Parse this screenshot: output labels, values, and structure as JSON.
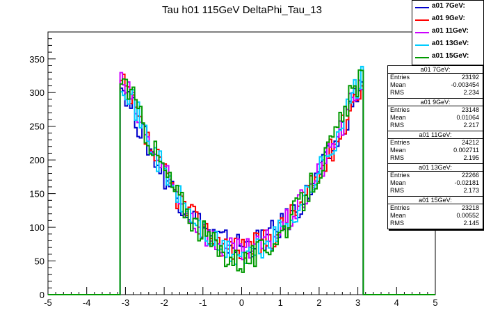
{
  "chart_data": {
    "type": "line",
    "title": "Tau h01 115GeV DeltaPhi_Tau_13",
    "xlabel": "",
    "ylabel": "",
    "xlim": [
      -5,
      5
    ],
    "ylim": [
      0,
      390
    ],
    "x_ticks": [
      "-5",
      "-4",
      "-3",
      "-2",
      "-1",
      "0",
      "1",
      "2",
      "3",
      "4",
      "5"
    ],
    "y_ticks": [
      "0",
      "50",
      "100",
      "150",
      "200",
      "250",
      "300",
      "350"
    ],
    "grid": false,
    "legend_position": "top-right",
    "series": [
      {
        "name": "a01 7GeV:",
        "color": "#0000cc",
        "entries": "23192",
        "mean": "-0.003454",
        "rms": "2.234",
        "seed": 1
      },
      {
        "name": "a01 9GeV:",
        "color": "#ff0000",
        "entries": "23148",
        "mean": "0.01064",
        "rms": "2.217",
        "seed": 2
      },
      {
        "name": "a01 11GeV:",
        "color": "#cc00ff",
        "entries": "24212",
        "mean": "0.002711",
        "rms": "2.195",
        "seed": 3
      },
      {
        "name": "a01 13GeV:",
        "color": "#00ccff",
        "entries": "22266",
        "mean": "-0.02181",
        "rms": "2.173",
        "seed": 4
      },
      {
        "name": "a01 15GeV:",
        "color": "#009900",
        "entries": "23218",
        "mean": "0.00552",
        "rms": "2.145",
        "seed": 5
      }
    ],
    "shape": {
      "range": [
        -3.14,
        3.14
      ],
      "bins": 100,
      "edge_value": 305,
      "center_value": 62,
      "peak_value": 330
    }
  },
  "stats_labels": {
    "entries": "Entries",
    "mean": "Mean",
    "rms": "RMS"
  }
}
